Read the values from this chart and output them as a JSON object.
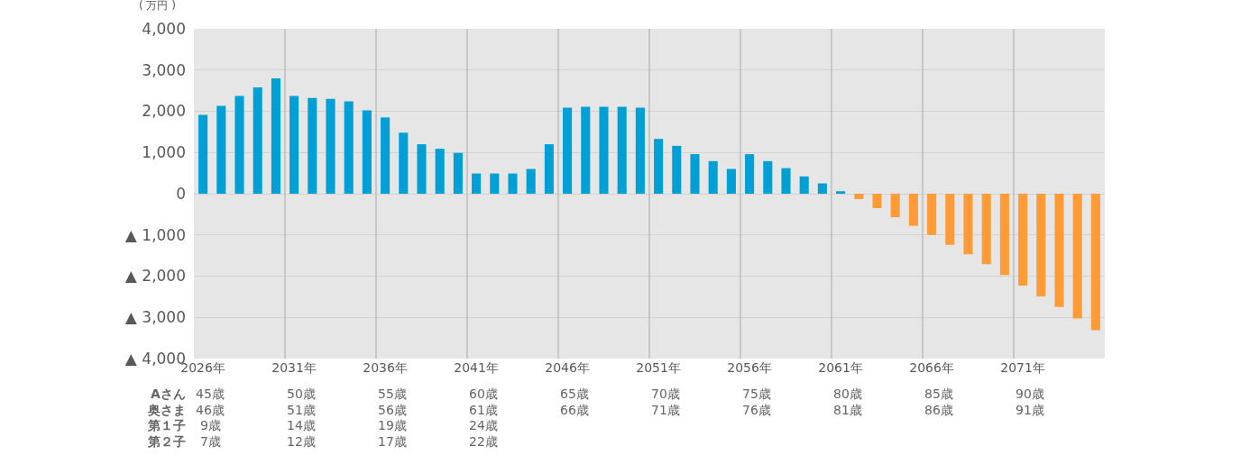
{
  "chart_data": {
    "type": "bar",
    "ylabel": "( 万円 )",
    "categories": [
      "2026年",
      null,
      null,
      null,
      null,
      "2031年",
      null,
      null,
      null,
      null,
      "2036年",
      null,
      null,
      null,
      null,
      "2041年",
      null,
      null,
      null,
      null,
      "2046年",
      null,
      null,
      null,
      null,
      "2051年",
      null,
      null,
      null,
      null,
      "2056年",
      null,
      null,
      null,
      null,
      "2061年",
      null,
      null,
      null,
      null,
      "2066年",
      null,
      null,
      null,
      null,
      "2071年",
      null,
      null,
      null,
      null
    ],
    "values": [
      1910,
      2130,
      2370,
      2580,
      2800,
      2370,
      2320,
      2300,
      2240,
      2020,
      1850,
      1480,
      1200,
      1090,
      990,
      490,
      490,
      490,
      600,
      1200,
      2090,
      2110,
      2110,
      2110,
      2090,
      1330,
      1160,
      960,
      790,
      600,
      960,
      790,
      620,
      420,
      250,
      60,
      -130,
      -350,
      -570,
      -780,
      -1000,
      -1240,
      -1470,
      -1710,
      -1970,
      -2230,
      -2490,
      -2750,
      -3030,
      -3310
    ],
    "colors": [
      "#00a0d6",
      "#00a0d6",
      "#00a0d6",
      "#00a0d6",
      "#00a0d6",
      "#00a0d6",
      "#00a0d6",
      "#00a0d6",
      "#00a0d6",
      "#00a0d6",
      "#00a0d6",
      "#00a0d6",
      "#00a0d6",
      "#00a0d6",
      "#00a0d6",
      "#00a0d6",
      "#00a0d6",
      "#00a0d6",
      "#00a0d6",
      "#00a0d6",
      "#00a0d6",
      "#00a0d6",
      "#00a0d6",
      "#00a0d6",
      "#00a0d6",
      "#00a0d6",
      "#00a0d6",
      "#00a0d6",
      "#00a0d6",
      "#00a0d6",
      "#00a0d6",
      "#00a0d6",
      "#00a0d6",
      "#00a0d6",
      "#00a0d6",
      "#00a0d6",
      "#ff9b37",
      "#ff9b37",
      "#ff9b37",
      "#ff9b37",
      "#ff9b37",
      "#ff9b37",
      "#ff9b37",
      "#ff9b37",
      "#ff9b37",
      "#ff9b37",
      "#ff9b37",
      "#ff9b37",
      "#ff9b37",
      "#ff9b37"
    ],
    "ylim": [
      -4000,
      4000
    ],
    "yticks": [
      {
        "value": 4000,
        "label": "4,000"
      },
      {
        "value": 3000,
        "label": "3,000"
      },
      {
        "value": 2000,
        "label": "2,000"
      },
      {
        "value": 1000,
        "label": "1,000"
      },
      0,
      {
        "value": -1000,
        "label": "▲ 1,000"
      },
      {
        "value": -2000,
        "label": "▲ 2,000"
      },
      {
        "value": -3000,
        "label": "▲ 3,000"
      },
      {
        "value": -4000,
        "label": "▲ 4,000"
      }
    ],
    "grid": true,
    "annotations": [
      "Aさん",
      "45歳",
      "50歳",
      "55歳",
      "60歳",
      "65歳",
      "70歳",
      "75歳",
      "80歳",
      "85歳",
      "90歳",
      "奥さま",
      "46歳",
      "51歳",
      "56歳",
      "61歳",
      "66歳",
      "71歳",
      "76歳",
      "81歳",
      "86歳",
      "91歳",
      "第１子",
      "9歳",
      "14歳",
      "19歳",
      "24歳",
      "第２子",
      "7歳",
      "12歳",
      "17歳",
      "22歳"
    ]
  }
}
